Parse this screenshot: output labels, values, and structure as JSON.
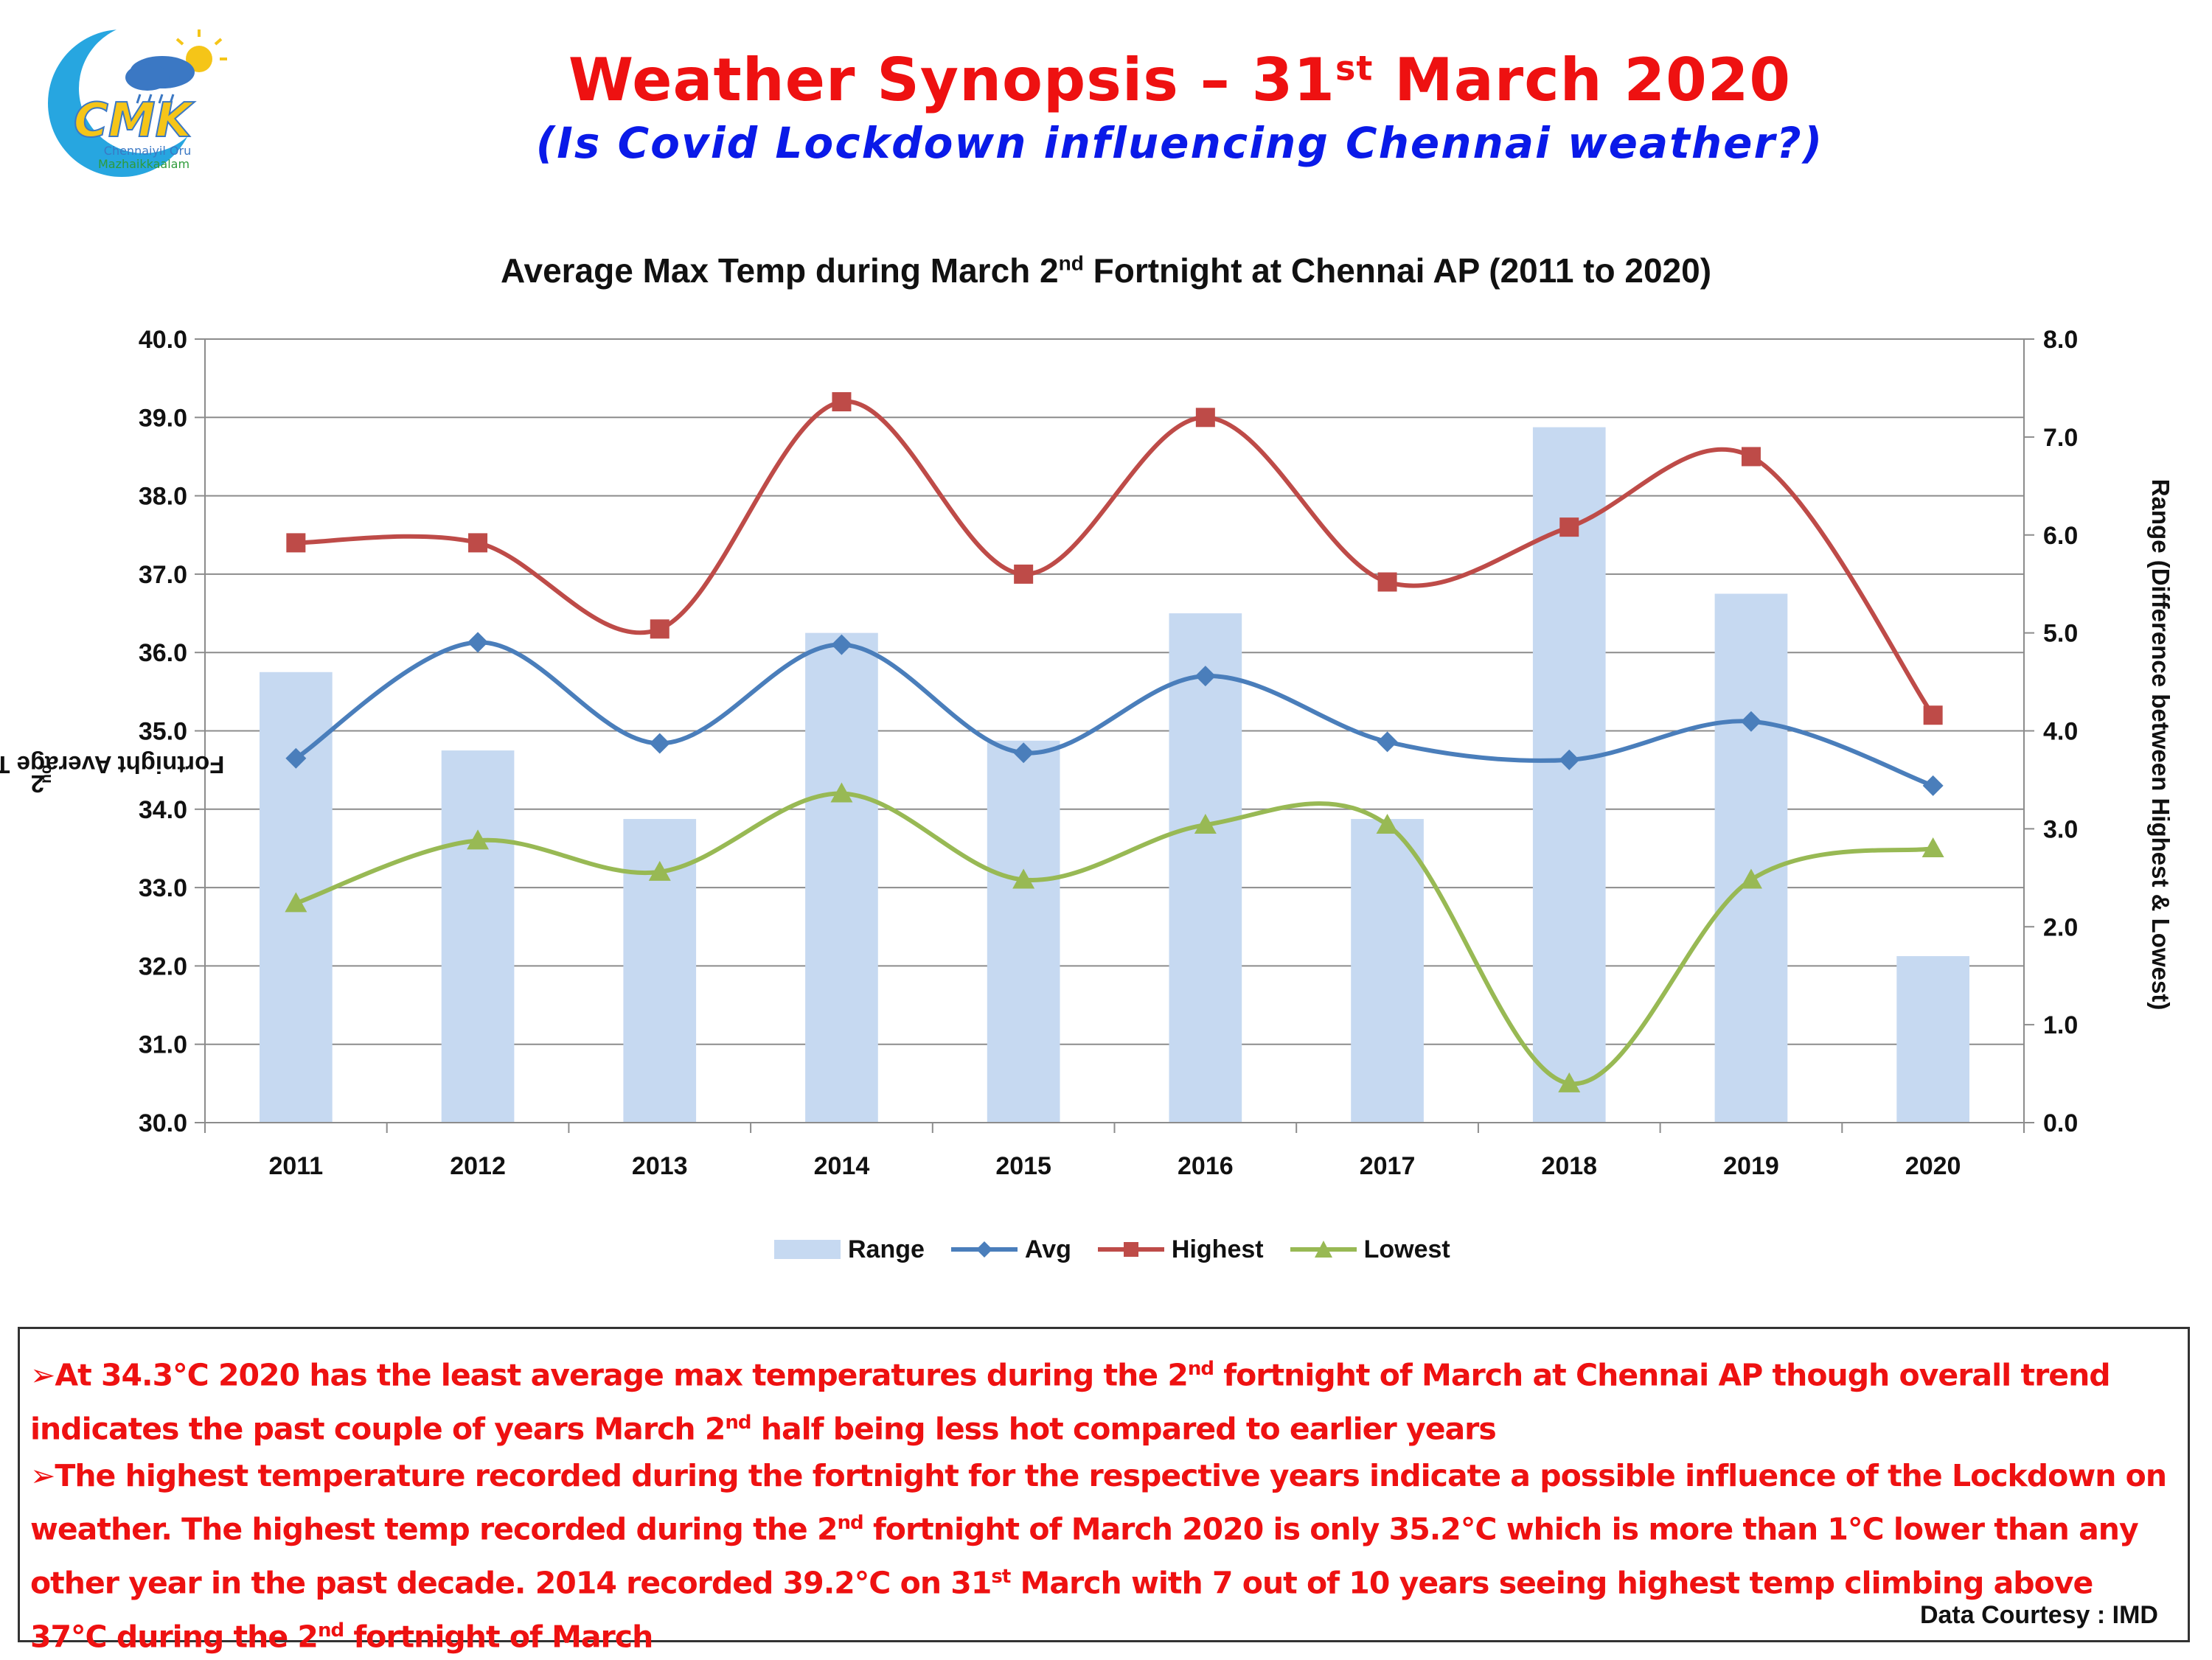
{
  "header": {
    "logo_text": "CMK",
    "logo_caption_1": "Chennaiyil Oru",
    "logo_caption_2": "Mazhaikkaalam",
    "title_main": "Weather Synopsis – 31",
    "title_sup": "st",
    "title_tail": " March 2020",
    "subtitle": "(Is Covid Lockdown influencing Chennai weather?)"
  },
  "chart_data": {
    "type": "bar",
    "title_pre": "Average Max Temp during March 2",
    "title_sup": "nd",
    "title_post": " Fortnight at Chennai AP (2011 to 2020)",
    "ylabel_sup": "nd",
    "ylabel_post": " Fortnight Average Temperatures",
    "ylabel_pre": "2",
    "y2label": "Range (Difference between Highest & Lowest)",
    "categories": [
      "2011",
      "2012",
      "2013",
      "2014",
      "2015",
      "2016",
      "2017",
      "2018",
      "2019",
      "2020"
    ],
    "ylim": [
      30.0,
      40.0
    ],
    "y2lim": [
      0.0,
      8.0
    ],
    "yticks": [
      "30.0",
      "31.0",
      "32.0",
      "33.0",
      "34.0",
      "35.0",
      "36.0",
      "37.0",
      "38.0",
      "39.0",
      "40.0"
    ],
    "y2ticks": [
      "0.0",
      "1.0",
      "2.0",
      "3.0",
      "4.0",
      "5.0",
      "6.0",
      "7.0",
      "8.0"
    ],
    "grid": true,
    "legend_position": "bottom",
    "series": [
      {
        "name": "Range",
        "kind": "bar",
        "axis": "right",
        "color": "#c6d9f1",
        "values": [
          4.6,
          3.8,
          3.1,
          5.0,
          3.9,
          5.2,
          3.1,
          7.1,
          5.4,
          1.7
        ]
      },
      {
        "name": "Avg",
        "kind": "line",
        "marker": "diamond",
        "axis": "left",
        "color": "#4a7ebb",
        "values": [
          34.65,
          36.13,
          34.84,
          36.1,
          34.72,
          35.7,
          34.86,
          34.63,
          35.12,
          34.3
        ]
      },
      {
        "name": "Highest",
        "kind": "line",
        "marker": "square",
        "axis": "left",
        "color": "#be4b48",
        "values": [
          37.4,
          37.4,
          36.3,
          39.2,
          37.0,
          39.0,
          36.9,
          37.6,
          38.5,
          35.2
        ]
      },
      {
        "name": "Lowest",
        "kind": "line",
        "marker": "triangle",
        "axis": "left",
        "color": "#98b954",
        "values": [
          32.8,
          33.6,
          33.2,
          34.2,
          33.1,
          33.8,
          33.8,
          30.5,
          33.1,
          33.5
        ]
      }
    ]
  },
  "notes": {
    "n1_a": "At 34.3°C 2020 has the least average max temperatures during the 2",
    "n1_sup": "nd",
    "n1_b": " fortnight of March at Chennai AP though overall trend indicates the past couple of years March 2",
    "n1_sup2": "nd",
    "n1_c": " half being less hot compared to earlier years",
    "n2_a": "The highest temperature recorded during the fortnight for the respective years indicate a possible influence of the Lockdown on weather. The highest temp recorded during the 2",
    "n2_sup": "nd",
    "n2_b": " fortnight of March 2020 is only 35.2°C  which is more than 1°C lower than any other year in the past decade. 2014 recorded 39.2°C on 31",
    "n2_sup2": "st",
    "n2_c": " March with 7 out of 10 years seeing highest temp climbing above 37°C during the 2",
    "n2_sup3": "nd",
    "n2_d": " fortnight of March",
    "arrow": "➢",
    "courtesy": "Data Courtesy : IMD"
  }
}
